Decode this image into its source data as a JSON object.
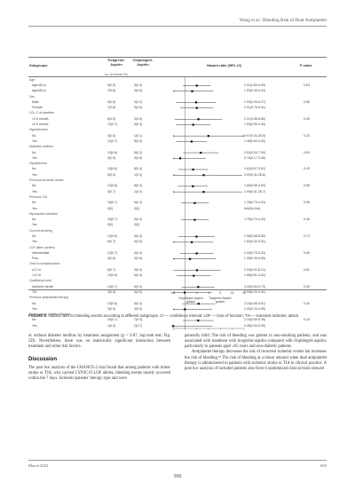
{
  "running_head": "Wang et al.: Bleeding Risk of Dual Antiplatelet",
  "table": {
    "col_subgroup": "Subgroups",
    "col_ticagrelor": "Ticagrelor-Aspirin",
    "col_clopidogrel": "Clopidogrel-Aspirin",
    "col_hr": "Hazard ratio (95% CI)",
    "col_p": "P value",
    "subhead": "no. of events (%)",
    "rows": [
      {
        "kind": "group",
        "label": "Age"
      },
      {
        "kind": "item",
        "label": "Age<65 yr",
        "tic": "9(0.5)",
        "clo": "5(0.3)",
        "hr": "2.01(0.89-4.53)",
        "p": "0.54"
      },
      {
        "kind": "item",
        "label": "Age≥65 yr",
        "tic": "7(0.8)",
        "clo": "4(0.5)",
        "hr": "1.53(0.45-5.24)",
        "p": ""
      },
      {
        "kind": "group",
        "label": "Sex"
      },
      {
        "kind": "item",
        "label": "Male",
        "tic": "9(0.5)",
        "clo": "4(0.2)",
        "hr": "1.93(0.59-6.27)",
        "p": "0.85"
      },
      {
        "kind": "item",
        "label": "Female",
        "tic": "7(0.8)",
        "clo": "5(0.6)",
        "hr": "2.01(0.76-5.31)",
        "p": ""
      },
      {
        "kind": "group",
        "label": "LDL-C at baseline"
      },
      {
        "kind": "item",
        "label": "<2.6 mmol/L",
        "tic": "6(0.5)",
        "clo": "3(0.3)",
        "hr": "2.21(0.55-8.85)",
        "p": "0.45"
      },
      {
        "kind": "item",
        "label": "≥2.6 mmol/L",
        "tic": "10(0.7)",
        "clo": "6(0.4)",
        "hr": "1.63(0.59-4.49)",
        "p": ""
      },
      {
        "kind": "group",
        "label": "Hypertension"
      },
      {
        "kind": "item",
        "label": "No",
        "tic": "4(0.5)",
        "clo": "1(0.1)",
        "hr": "3.97(0.44-35.5)",
        "p": "0.23"
      },
      {
        "kind": "item",
        "label": "Yes",
        "tic": "12(0.7)",
        "clo": "8(0.5)",
        "hr": "1.48(0.60-3.62)",
        "p": ""
      },
      {
        "kind": "group",
        "label": "Diabetes mellitus"
      },
      {
        "kind": "item",
        "label": "No",
        "tic": "13(0.6)",
        "clo": "5(0.2)",
        "hr": "2.53(0.90-7.09)",
        "p": "0.63"
      },
      {
        "kind": "item",
        "label": "Yes",
        "tic": "3(0.5)",
        "clo": "4(0.6)",
        "hr": "0.76(0.17-3.40)",
        "p": ""
      },
      {
        "kind": "group",
        "label": "Dyslipidemia"
      },
      {
        "kind": "item",
        "label": "No",
        "tic": "13(0.6)",
        "clo": "8(0.4)",
        "hr": "1.62(0.67-3.92)",
        "p": "0.43"
      },
      {
        "kind": "item",
        "label": "Yes",
        "tic": "3(0.9)",
        "clo": "1(0.3)",
        "hr": "3.00(0.31-28.8)",
        "p": ""
      },
      {
        "kind": "group",
        "label": "Previous ischemic stroke"
      },
      {
        "kind": "item",
        "label": "No",
        "tic": "13(0.6)",
        "clo": "8(0.4)",
        "hr": "1.59(0.66-3.84)",
        "p": "0.58"
      },
      {
        "kind": "item",
        "label": "Yes",
        "tic": "3(0.7)",
        "clo": "1(0.2)",
        "hr": "2.99(0.31-28.7)",
        "p": ""
      },
      {
        "kind": "group",
        "label": "Previous TIA"
      },
      {
        "kind": "item",
        "label": "No",
        "tic": "16(0.7)",
        "clo": "9(0.4)",
        "hr": "1.78(0.79-4.03)",
        "p": "0.96"
      },
      {
        "kind": "item",
        "label": "Yes",
        "tic": "0(0)",
        "clo": "0(0)",
        "hr": "NA(NA-NA)",
        "p": ""
      },
      {
        "kind": "group",
        "label": "Myocardial infarction"
      },
      {
        "kind": "item",
        "label": "No",
        "tic": "16(0.7)",
        "clo": "9(0.4)",
        "hr": "1.78(0.79-4.03)",
        "p": "0.46"
      },
      {
        "kind": "item",
        "label": "Yes",
        "tic": "0(0)",
        "clo": "0(0)",
        "hr": "",
        "p": ""
      },
      {
        "kind": "group",
        "label": "Current smoking"
      },
      {
        "kind": "item",
        "label": "No",
        "tic": "10(0.6)",
        "clo": "5(0.3)",
        "hr": "1.98(0.68-5.80)",
        "p": "0.74"
      },
      {
        "kind": "item",
        "label": "Yes",
        "tic": "6(0.7)",
        "clo": "4(0.5)",
        "hr": "1.50(0.42-5.31)",
        "p": ""
      },
      {
        "kind": "group",
        "label": "LOF allele carriers"
      },
      {
        "kind": "item",
        "label": "Intermediate",
        "tic": "12(0.7)",
        "clo": "6(0.4)",
        "hr": "2.00(0.75-5.33)",
        "p": "0.66"
      },
      {
        "kind": "item",
        "label": "Poor",
        "tic": "4(0.6)",
        "clo": "3(0.5)",
        "hr": "1.35(0.30-6.05)",
        "p": ""
      },
      {
        "kind": "group",
        "label": "Time to randomization"
      },
      {
        "kind": "item",
        "label": "≤12 hr",
        "tic": "6(0.7)",
        "clo": "3(0.4)",
        "hr": "2.03(0.51-8.12)",
        "p": "0.81"
      },
      {
        "kind": "item",
        "label": ">12 hr",
        "tic": "10(0.6)",
        "clo": "6(0.4)",
        "hr": "1.68(0.61-4.62)",
        "p": ""
      },
      {
        "kind": "group",
        "label": "Qualifying event"
      },
      {
        "kind": "item",
        "label": "Ischemic stroke",
        "tic": "13(0.7)",
        "clo": "6(0.3)",
        "hr": "2.18(0.83-5.73)",
        "p": "0.39"
      },
      {
        "kind": "item",
        "label": "TIA",
        "tic": "3(0.5)",
        "clo": "3(0.5)",
        "hr": "0.99(0.20-4.91)",
        "p": ""
      },
      {
        "kind": "group",
        "label": "Previous antiplatelet therapy"
      },
      {
        "kind": "item",
        "label": "No",
        "tic": "13(0.6)",
        "clo": "6(0.3)",
        "hr": "2.23(0.85-5.87)",
        "p": "0.26"
      },
      {
        "kind": "item",
        "label": "Yes",
        "tic": "3(0.9)",
        "clo": "3(0.9)",
        "hr": "1.00(0.20-4.95)",
        "p": ""
      },
      {
        "kind": "group",
        "label": "Proton pump inhibitor therapy"
      },
      {
        "kind": "item",
        "label": "No",
        "tic": "15(0.7)",
        "clo": "7(0.3)",
        "hr": "2.18(0.89-5.35)",
        "p": "0.18"
      },
      {
        "kind": "item",
        "label": "Yes",
        "tic": "1(0.3)",
        "clo": "2(0.7)",
        "hr": "0.46(0.04-5.05)",
        "p": ""
      }
    ],
    "axis_ticks": [
      "0.5",
      "1",
      "2",
      "4",
      "8",
      "16",
      "32"
    ],
    "favor_left": "Clopidogrel-Aspirin greater",
    "favor_right": "Ticagrelor-Aspirin greater"
  },
  "chart_data": {
    "type": "scatter",
    "scale": "log2",
    "xlim": [
      0.5,
      32
    ],
    "reference_line": 1,
    "estimates": [
      {
        "hr": 2.01,
        "lo": 0.89,
        "hi": 4.53
      },
      {
        "hr": 1.53,
        "lo": 0.45,
        "hi": 5.24
      },
      {
        "hr": 1.93,
        "lo": 0.59,
        "hi": 6.27
      },
      {
        "hr": 2.01,
        "lo": 0.76,
        "hi": 5.31
      },
      {
        "hr": 2.21,
        "lo": 0.55,
        "hi": 8.85
      },
      {
        "hr": 1.63,
        "lo": 0.59,
        "hi": 4.49
      },
      {
        "hr": 3.97,
        "lo": 0.44,
        "hi": 35.5
      },
      {
        "hr": 1.48,
        "lo": 0.6,
        "hi": 3.62
      },
      {
        "hr": 2.53,
        "lo": 0.9,
        "hi": 7.09
      },
      {
        "hr": 0.76,
        "lo": 0.17,
        "hi": 3.4
      },
      {
        "hr": 1.62,
        "lo": 0.67,
        "hi": 3.92
      },
      {
        "hr": 3.0,
        "lo": 0.31,
        "hi": 28.8
      },
      {
        "hr": 1.59,
        "lo": 0.66,
        "hi": 3.84
      },
      {
        "hr": 2.99,
        "lo": 0.31,
        "hi": 28.7
      },
      {
        "hr": 1.78,
        "lo": 0.79,
        "hi": 4.03
      },
      null,
      {
        "hr": 1.78,
        "lo": 0.79,
        "hi": 4.03
      },
      null,
      {
        "hr": 1.98,
        "lo": 0.68,
        "hi": 5.8
      },
      {
        "hr": 1.5,
        "lo": 0.42,
        "hi": 5.31
      },
      {
        "hr": 2.0,
        "lo": 0.75,
        "hi": 5.33
      },
      {
        "hr": 1.35,
        "lo": 0.3,
        "hi": 6.05
      },
      {
        "hr": 2.03,
        "lo": 0.51,
        "hi": 8.12
      },
      {
        "hr": 1.68,
        "lo": 0.61,
        "hi": 4.62
      },
      {
        "hr": 2.18,
        "lo": 0.83,
        "hi": 5.73
      },
      {
        "hr": 0.99,
        "lo": 0.2,
        "hi": 4.91
      },
      {
        "hr": 2.23,
        "lo": 0.85,
        "hi": 5.87
      },
      {
        "hr": 1.0,
        "lo": 0.2,
        "hi": 4.95
      },
      {
        "hr": 2.18,
        "lo": 0.89,
        "hi": 5.35
      },
      {
        "hr": 0.46,
        "lo": 0.04,
        "hi": 5.05
      }
    ]
  },
  "caption": {
    "label": "FIGURE 6:",
    "text": " Hazard ratio for bleeding events according to different subgroups. CI — confidence interval; LOF — loss-of-function; TIA — transient ischemic attack."
  },
  "body": {
    "left_para1": "or without diabetes mellitus by treatment assignment (p = 0.87, log-rank test; Fig. 5D). Nevertheless, there was no statistically significant interaction between treatment and other risk factors.",
    "discussion_title": "Discussion",
    "left_para2": "The post hoc analysis of the CHANCE-2 trial found that among patients with minor stroke or TIA, who carried CYP2C19 LOF alleles, bleeding events mostly occurred within the 7 days. Ischemic/patients' therapy type and were",
    "right_para1": "generally mild. The risk of bleeding was greater in non-smoking patients, and was associated with treatment with ticagrelor-aspirin compared with clopidogrel-aspirin, particularly in patients aged ≥65 years and non-diabetic patients.",
    "right_para2": "Antiplatelet therapy decreases the risk of recurrent ischemic events but increases the risk of bleeding.¹⁹ The risk of bleeding at a minor amount when dual antiplatelet therapy is administered to patients with ischemic stroke or TIA in clinical practice. A post hoc analysis of included patients also from 6 randomized clinical trials showed"
  },
  "footer": {
    "left": "March 2022",
    "right": "665",
    "page_number": "306"
  }
}
